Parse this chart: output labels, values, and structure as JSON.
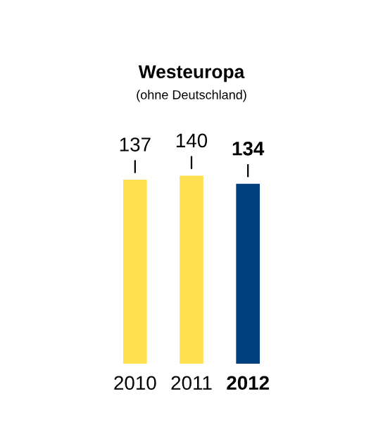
{
  "chart_data": {
    "type": "bar",
    "title": "Westeuropa",
    "subtitle": "(ohne Deutschland)",
    "categories": [
      "2010",
      "2011",
      "2012"
    ],
    "values": [
      137,
      140,
      134
    ],
    "colors": [
      "#ffe14f",
      "#ffe14f",
      "#003f7d"
    ],
    "data_labels": true
  }
}
